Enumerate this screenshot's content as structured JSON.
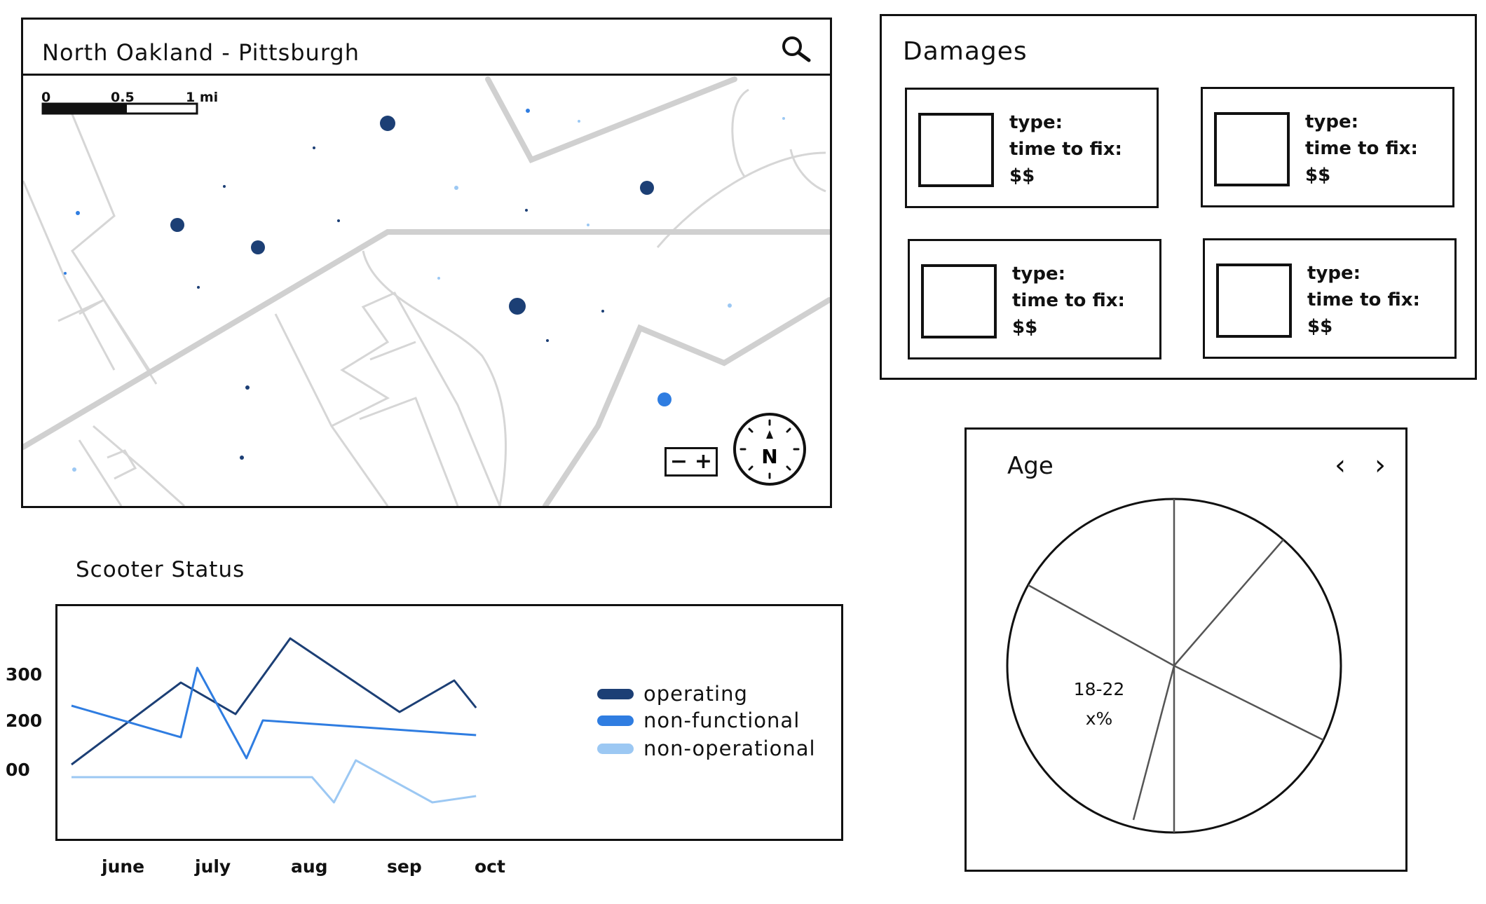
{
  "map": {
    "title": "North Oakland - Pittsburgh",
    "search_icon": "search-icon",
    "scale": {
      "zero": "0",
      "half": "0.5",
      "one": "1 mi"
    },
    "zoom": {
      "minus": "−",
      "plus": "+"
    },
    "compass_label": "N",
    "colors": {
      "large_dot": "#1c3f75",
      "mid_dot": "#2f7de1",
      "light_dot": "#9cc8f3",
      "road_major": "#d0d0d0",
      "road_minor": "#d6d6d6"
    }
  },
  "damages": {
    "title": "Damages",
    "cards": [
      {
        "type_label": "type:",
        "time_label": "time to fix:",
        "cost_label": "$$"
      },
      {
        "type_label": "type:",
        "time_label": "time to fix:",
        "cost_label": "$$"
      },
      {
        "type_label": "type:",
        "time_label": "time to fix:",
        "cost_label": "$$"
      },
      {
        "type_label": "type:",
        "time_label": "time to fix:",
        "cost_label": "$$"
      }
    ]
  },
  "status": {
    "title": "Scooter Status",
    "y_ticks": [
      "300",
      "200",
      "00"
    ],
    "x_ticks": [
      "june",
      "july",
      "aug",
      "sep",
      "oct"
    ],
    "legend": [
      "operating",
      "non-functional",
      "non-operational"
    ]
  },
  "chart_data": {
    "type": "line",
    "title": "Scooter Status",
    "x_labels": [
      "june",
      "july",
      "aug",
      "sep",
      "oct"
    ],
    "yticks": [
      "300",
      "200",
      "00"
    ],
    "colors": {
      "operating": "#1c3f75",
      "non-functional": "#2f7de1",
      "non-operational": "#9cc8f3"
    },
    "series": [
      {
        "name": "operating",
        "points": [
          [
            0,
            90
          ],
          [
            2,
            285
          ],
          [
            3,
            210
          ],
          [
            4,
            390
          ],
          [
            6,
            215
          ],
          [
            7,
            290
          ],
          [
            7.4,
            225
          ]
        ]
      },
      {
        "name": "non-functional",
        "points": [
          [
            0,
            230
          ],
          [
            2,
            155
          ],
          [
            2.3,
            320
          ],
          [
            3.2,
            105
          ],
          [
            3.5,
            195
          ],
          [
            7.4,
            160
          ]
        ]
      },
      {
        "name": "non-operational",
        "points": [
          [
            0,
            60
          ],
          [
            4.4,
            60
          ],
          [
            4.8,
            0
          ],
          [
            5.2,
            100
          ],
          [
            6.6,
            0
          ],
          [
            7.4,
            15
          ]
        ]
      }
    ]
  },
  "age": {
    "title": "Age",
    "prev": "‹",
    "next": "›",
    "slice_range": "18-22",
    "slice_value": "x%"
  }
}
